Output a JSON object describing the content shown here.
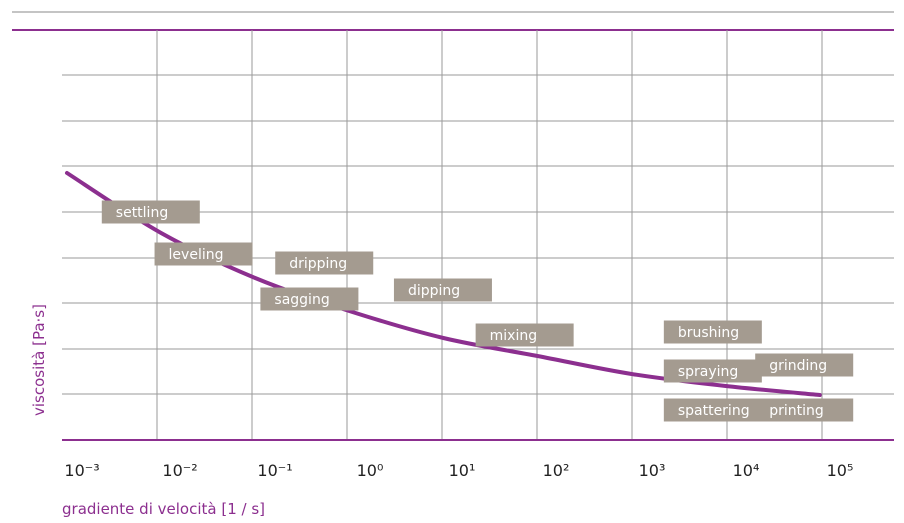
{
  "chart_data": {
    "type": "line",
    "xscale": "log",
    "x_ticks": [
      "10⁻³",
      "10⁻²",
      "10⁻¹",
      "10⁰",
      "10¹",
      "10²",
      "10³",
      "10⁴",
      "10⁵"
    ],
    "x_tick_values": [
      0.001,
      0.01,
      0.1,
      1,
      10,
      100,
      1000,
      10000,
      100000
    ],
    "xlim": [
      0.001,
      100000
    ],
    "xlabel": "gradiente di velocità [1 / s]",
    "ylabel": "viscosità [Pa·s]",
    "grid": true,
    "y_ticks_printed": false,
    "series": [
      {
        "points": [
          {
            "x": 0.001,
            "y": 0.89
          },
          {
            "x": 0.01,
            "y": 0.69
          },
          {
            "x": 0.1,
            "y": 0.54
          },
          {
            "x": 1,
            "y": 0.43
          },
          {
            "x": 10,
            "y": 0.34
          },
          {
            "x": 100,
            "y": 0.28
          },
          {
            "x": 1000,
            "y": 0.22
          },
          {
            "x": 10000,
            "y": 0.18
          },
          {
            "x": 100000,
            "y": 0.15
          }
        ]
      }
    ],
    "annotations": [
      {
        "label": "settling",
        "x": 0.0033,
        "y": 0.76
      },
      {
        "label": "leveling",
        "x": 0.012,
        "y": 0.62
      },
      {
        "label": "dripping",
        "x": 0.23,
        "y": 0.59
      },
      {
        "label": "sagging",
        "x": 0.16,
        "y": 0.47
      },
      {
        "label": "dipping",
        "x": 4.2,
        "y": 0.5
      },
      {
        "label": "mixing",
        "x": 31,
        "y": 0.35
      },
      {
        "label": "brushing",
        "x": 3100,
        "y": 0.36
      },
      {
        "label": "spraying",
        "x": 3100,
        "y": 0.23
      },
      {
        "label": "spattering",
        "x": 3100,
        "y": 0.1
      },
      {
        "label": "grinding",
        "x": 29000,
        "y": 0.25
      },
      {
        "label": "printing",
        "x": 29000,
        "y": 0.1
      }
    ],
    "colors": {
      "curve": "#8c2f8f",
      "top_rule": "#8c2f8f",
      "axis": "#8c2f8f",
      "grid": "#9a9a9a",
      "tag_fill": "#a49b90",
      "tag_text": "#ffffff"
    }
  }
}
